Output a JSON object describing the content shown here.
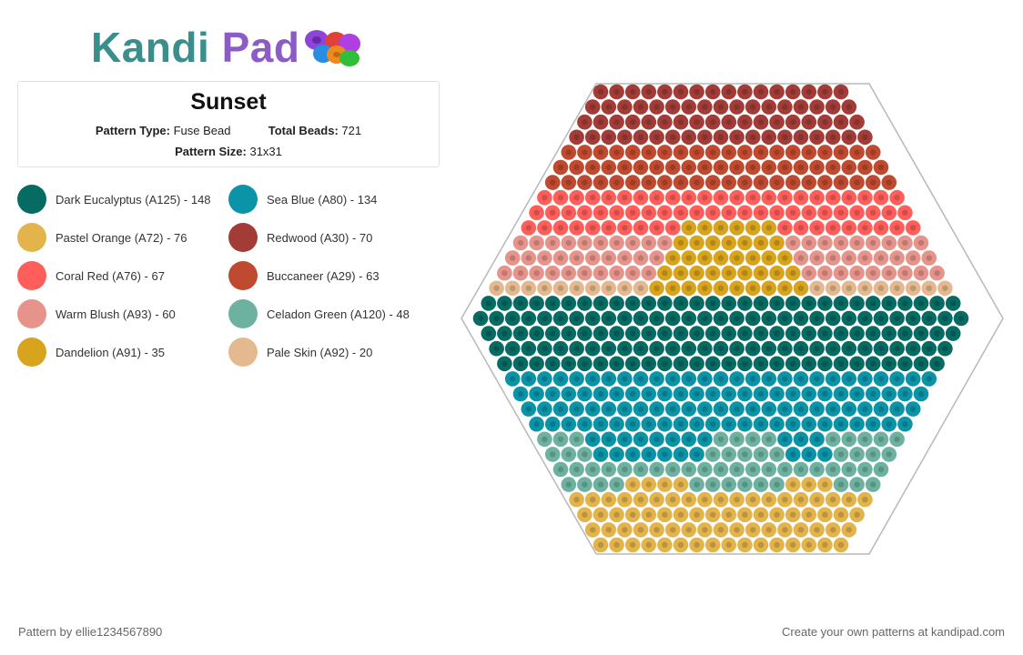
{
  "brand": {
    "name_part1": "Kandi",
    "name_part2": "Pad"
  },
  "pattern": {
    "title": "Sunset",
    "type_label": "Pattern Type:",
    "type_value": "Fuse Bead",
    "total_label": "Total Beads:",
    "total_value": "721",
    "size_label": "Pattern Size:",
    "size_value": "31x31"
  },
  "legend": [
    {
      "label": "Dark Eucalyptus (A125) - 148",
      "color": "#066b63"
    },
    {
      "label": "Sea Blue (A80) - 134",
      "color": "#0b94a8"
    },
    {
      "label": "Pastel Orange (A72) - 76",
      "color": "#e3b44c"
    },
    {
      "label": "Redwood (A30) - 70",
      "color": "#a33c37"
    },
    {
      "label": "Coral Red (A76) - 67",
      "color": "#ff5e5b"
    },
    {
      "label": "Buccaneer (A29) - 63",
      "color": "#c04a2f"
    },
    {
      "label": "Warm Blush (A93) - 60",
      "color": "#e6948b"
    },
    {
      "label": "Celadon Green (A120) - 48",
      "color": "#6db2a0"
    },
    {
      "label": "Dandelion (A91) - 35",
      "color": "#d8a41e"
    },
    {
      "label": "Pale Skin (A92) - 20",
      "color": "#e4b98f"
    }
  ],
  "footer": {
    "author": "Pattern by ellie1234567890",
    "cta": "Create your own patterns at kandipad.com"
  }
}
